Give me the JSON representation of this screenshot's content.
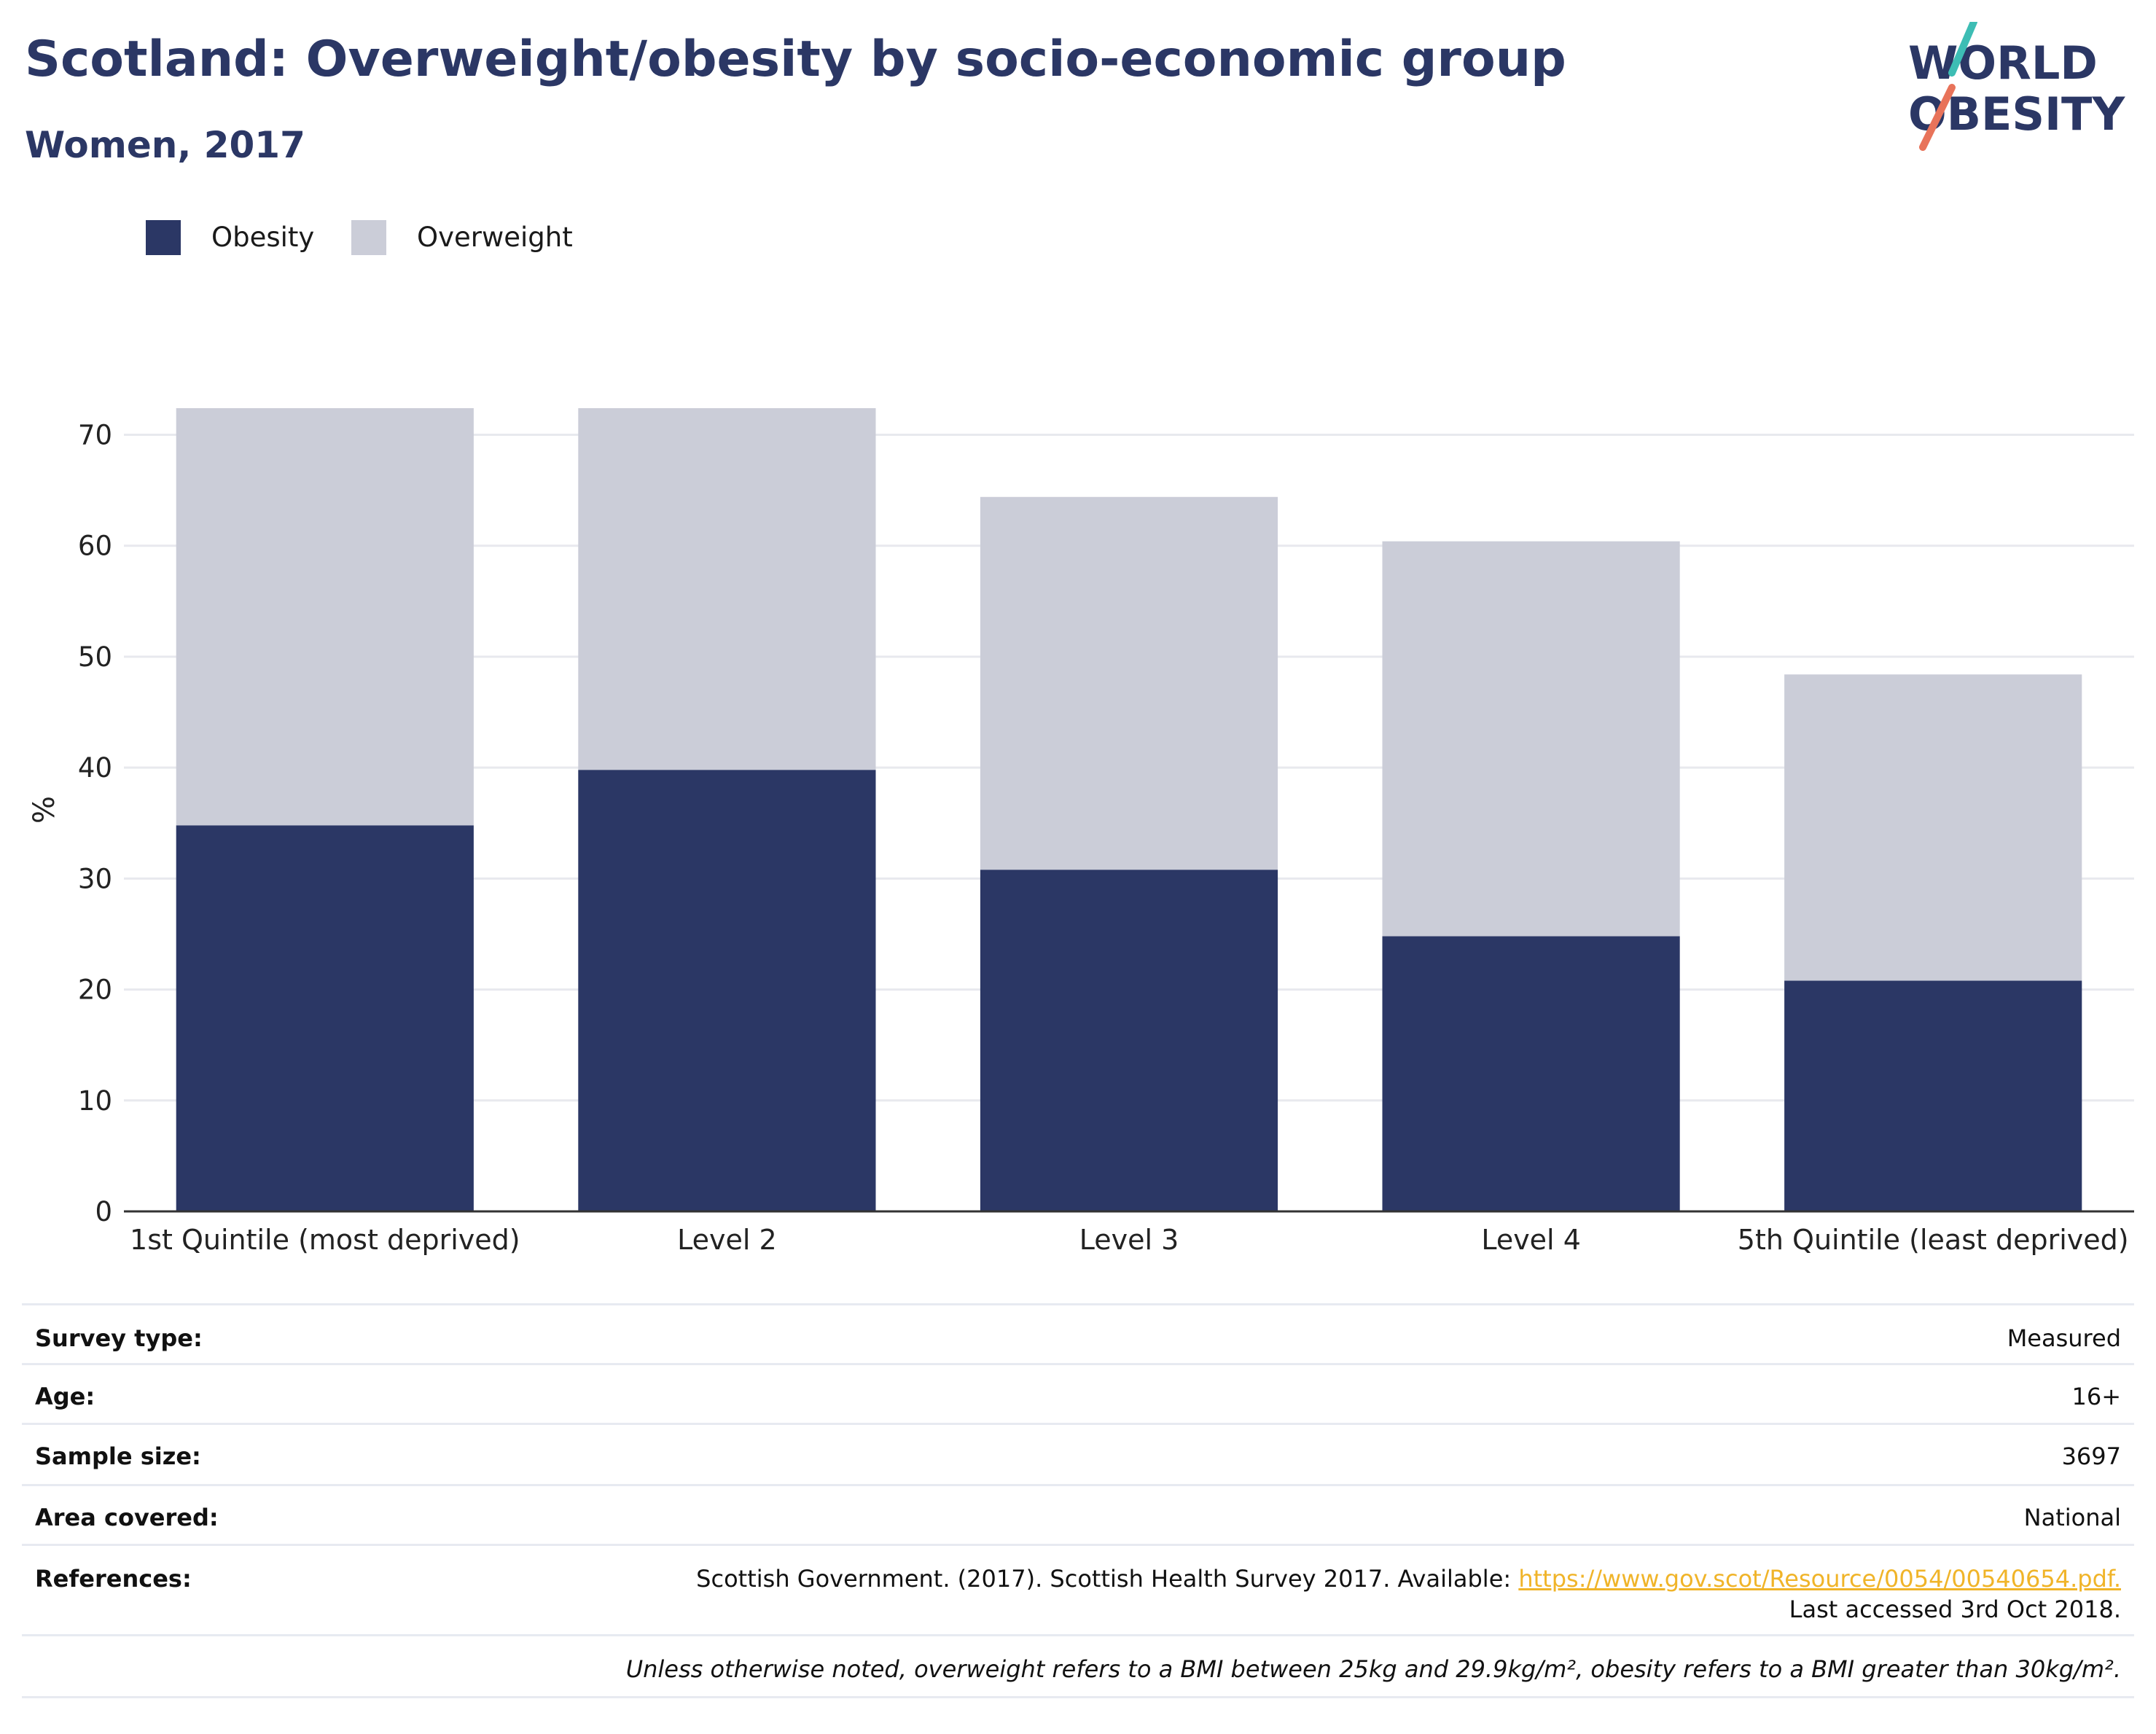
{
  "header": {
    "title": "Scotland: Overweight/obesity by socio-economic group",
    "subtitle": "Women, 2017"
  },
  "logo": {
    "line1": "WORLD",
    "line2": "OBESITY",
    "accent_teal": "#3dbdb4",
    "accent_coral": "#e8735a",
    "text_color": "#2b3765"
  },
  "chart_data": {
    "type": "bar",
    "stacked": true,
    "categories": [
      "1st Quintile (most deprived)",
      "Level 2",
      "Level 3",
      "Level 4",
      "5th Quintile (least deprived)"
    ],
    "series": [
      {
        "name": "Obesity",
        "color": "#2b3765",
        "values": [
          34.8,
          39.8,
          30.8,
          24.8,
          20.8
        ]
      },
      {
        "name": "Overweight",
        "color": "#cbcdd8",
        "values": [
          37.6,
          32.6,
          33.6,
          35.6,
          27.6
        ]
      }
    ],
    "ylabel": "%",
    "ylim": [
      0,
      72.4
    ],
    "yticks": [
      0,
      10,
      20,
      30,
      40,
      50,
      60,
      70
    ],
    "grid": true,
    "legend_position": "top-left"
  },
  "meta": {
    "survey_type": {
      "label": "Survey type:",
      "value": "Measured"
    },
    "age": {
      "label": "Age:",
      "value": "16+"
    },
    "sample_size": {
      "label": "Sample size:",
      "value": "3697"
    },
    "area_covered": {
      "label": "Area covered:",
      "value": "National"
    },
    "references": {
      "label": "References:",
      "text_before": "Scottish Government. (2017). Scottish Health Survey 2017. Available: ",
      "link": "https://www.gov.scot/Resource/0054/00540654.pdf.",
      "text_after": " Last accessed 3rd Oct 2018."
    },
    "footnote": "Unless otherwise noted, overweight refers to a BMI between 25kg and 29.9kg/m², obesity refers to a BMI greater than 30kg/m²."
  }
}
